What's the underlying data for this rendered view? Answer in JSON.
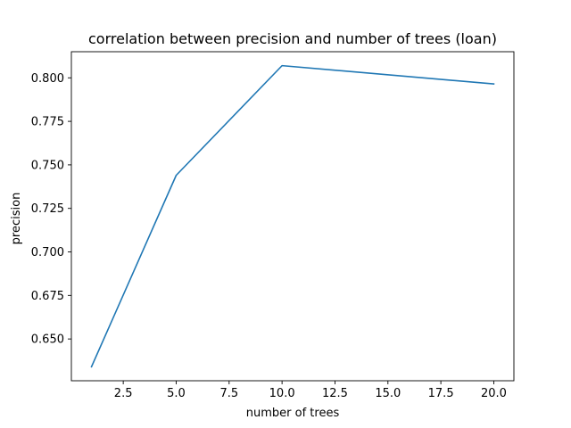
{
  "chart_data": {
    "type": "line",
    "title": "correlation between precision and number of trees (loan)",
    "xlabel": "number of trees",
    "ylabel": "precision",
    "xlim": [
      0.05,
      20.95
    ],
    "ylim": [
      0.626,
      0.815
    ],
    "grid": false,
    "x_ticks": [
      2.5,
      5.0,
      7.5,
      10.0,
      12.5,
      15.0,
      17.5,
      20.0
    ],
    "x_tick_labels": [
      "2.5",
      "5.0",
      "7.5",
      "10.0",
      "12.5",
      "15.0",
      "17.5",
      "20.0"
    ],
    "y_ticks": [
      0.65,
      0.675,
      0.7,
      0.725,
      0.75,
      0.775,
      0.8
    ],
    "y_tick_labels": [
      "0.650",
      "0.675",
      "0.700",
      "0.725",
      "0.750",
      "0.775",
      "0.800"
    ],
    "series": [
      {
        "color": "#1f77b4",
        "x": [
          1,
          5,
          10,
          20
        ],
        "y": [
          0.634,
          0.744,
          0.807,
          0.7965
        ]
      }
    ]
  }
}
